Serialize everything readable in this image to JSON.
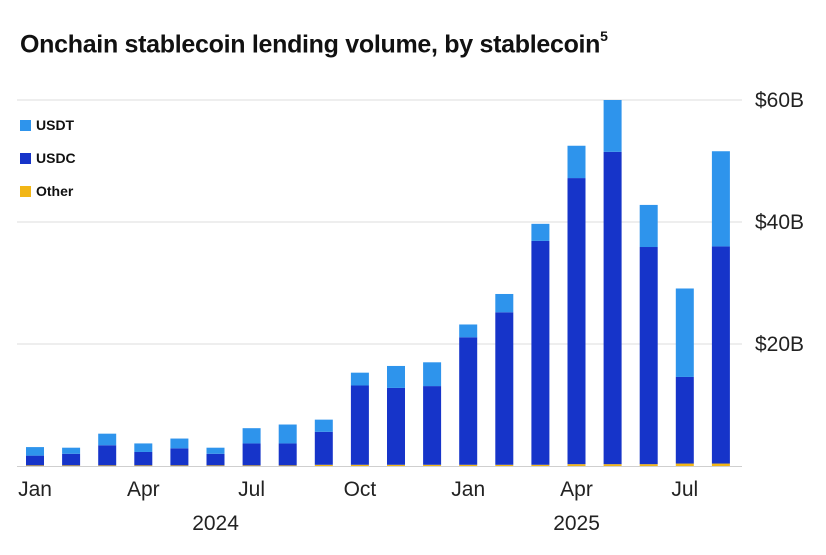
{
  "chart_data": {
    "type": "bar",
    "stacked": true,
    "title": "Onchain stablecoin lending volume, by stablecoin",
    "title_footnote": "5",
    "months": [
      "Jan 2024",
      "Feb 2024",
      "Mar 2024",
      "Apr 2024",
      "May 2024",
      "Jun 2024",
      "Jul 2024",
      "Aug 2024",
      "Sep 2024",
      "Oct 2024",
      "Nov 2024",
      "Dec 2024",
      "Jan 2025",
      "Feb 2025",
      "Mar 2025",
      "Apr 2025",
      "May 2025",
      "Jun 2025",
      "Jul 2025",
      "Aug 2025"
    ],
    "series": [
      {
        "name": "Other",
        "color": "#f2b616",
        "values": [
          0.1,
          0.1,
          0.1,
          0.1,
          0.1,
          0.1,
          0.1,
          0.1,
          0.2,
          0.2,
          0.2,
          0.2,
          0.2,
          0.2,
          0.2,
          0.3,
          0.3,
          0.3,
          0.4,
          0.4
        ]
      },
      {
        "name": "USDC",
        "color": "#1634c9",
        "values": [
          1.6,
          1.9,
          3.3,
          2.2,
          2.8,
          1.9,
          3.6,
          3.6,
          5.4,
          13.0,
          12.6,
          12.9,
          20.9,
          25.0,
          36.7,
          46.9,
          51.2,
          35.6,
          14.2,
          35.6
        ]
      },
      {
        "name": "USDT",
        "color": "#2e94ec",
        "values": [
          1.4,
          1.0,
          1.9,
          1.4,
          1.6,
          1.0,
          2.5,
          3.1,
          2.0,
          2.1,
          3.6,
          3.9,
          2.1,
          3.0,
          2.8,
          5.3,
          8.5,
          6.9,
          14.5,
          15.6
        ]
      }
    ],
    "legend_order": [
      "USDT",
      "USDC",
      "Other"
    ],
    "legend_position": "top-left",
    "x_tick_labels": [
      {
        "index": 0,
        "label": "Jan"
      },
      {
        "index": 3,
        "label": "Apr"
      },
      {
        "index": 6,
        "label": "Jul"
      },
      {
        "index": 9,
        "label": "Oct"
      },
      {
        "index": 12,
        "label": "Jan"
      },
      {
        "index": 15,
        "label": "Apr"
      },
      {
        "index": 18,
        "label": "Jul"
      }
    ],
    "year_labels": [
      {
        "center_index": 5.5,
        "label": "2024"
      },
      {
        "center_index": 15.5,
        "label": "2025"
      }
    ],
    "y_ticks": [
      {
        "value": 20,
        "label": "$20B"
      },
      {
        "value": 40,
        "label": "$40B"
      },
      {
        "value": 60,
        "label": "$60B"
      }
    ],
    "ylim": [
      0,
      60
    ],
    "y_axis_side": "right",
    "grid": true
  }
}
